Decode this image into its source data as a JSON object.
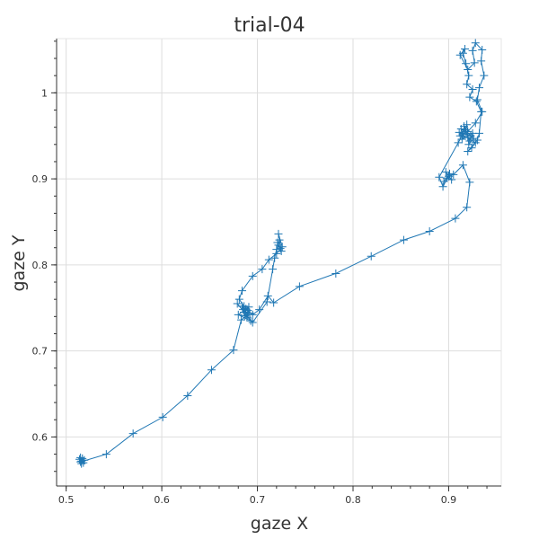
{
  "chart_data": {
    "type": "scatter",
    "title": "trial-04",
    "xlabel": "gaze X",
    "ylabel": "gaze Y",
    "xlim": [
      0.49,
      0.955
    ],
    "ylim": [
      0.543,
      1.063
    ],
    "xticks": [
      0.5,
      0.6,
      0.7,
      0.8,
      0.9
    ],
    "yticks": [
      0.6,
      0.7,
      0.8,
      0.9,
      1.0
    ],
    "xtick_labels": [
      "0.5",
      "0.6",
      "0.7",
      "0.8",
      "0.9"
    ],
    "ytick_labels": [
      "0.6",
      "0.7",
      "0.8",
      "0.9",
      "1"
    ],
    "grid": true,
    "marker": "cross",
    "line_color": "#1f77b4",
    "series": [
      {
        "points": [
          [
            0.516,
            0.572
          ],
          [
            0.515,
            0.576
          ],
          [
            0.518,
            0.57
          ],
          [
            0.514,
            0.574
          ],
          [
            0.519,
            0.573
          ],
          [
            0.516,
            0.569
          ],
          [
            0.517,
            0.575
          ],
          [
            0.515,
            0.571
          ],
          [
            0.542,
            0.58
          ],
          [
            0.57,
            0.604
          ],
          [
            0.601,
            0.623
          ],
          [
            0.627,
            0.648
          ],
          [
            0.652,
            0.678
          ],
          [
            0.675,
            0.701
          ],
          [
            0.683,
            0.736
          ],
          [
            0.69,
            0.742
          ],
          [
            0.685,
            0.748
          ],
          [
            0.691,
            0.751
          ],
          [
            0.686,
            0.745
          ],
          [
            0.689,
            0.739
          ],
          [
            0.684,
            0.752
          ],
          [
            0.692,
            0.744
          ],
          [
            0.687,
            0.741
          ],
          [
            0.688,
            0.749
          ],
          [
            0.68,
            0.742
          ],
          [
            0.693,
            0.735
          ],
          [
            0.679,
            0.755
          ],
          [
            0.695,
            0.733
          ],
          [
            0.71,
            0.757
          ],
          [
            0.716,
            0.795
          ],
          [
            0.718,
            0.808
          ],
          [
            0.72,
            0.818
          ],
          [
            0.722,
            0.823
          ],
          [
            0.724,
            0.819
          ],
          [
            0.721,
            0.826
          ],
          [
            0.725,
            0.816
          ],
          [
            0.723,
            0.829
          ],
          [
            0.722,
            0.836
          ],
          [
            0.726,
            0.821
          ],
          [
            0.72,
            0.813
          ],
          [
            0.712,
            0.806
          ],
          [
            0.705,
            0.795
          ],
          [
            0.695,
            0.787
          ],
          [
            0.684,
            0.77
          ],
          [
            0.681,
            0.76
          ],
          [
            0.686,
            0.752
          ],
          [
            0.69,
            0.747
          ],
          [
            0.695,
            0.742
          ],
          [
            0.702,
            0.748
          ],
          [
            0.711,
            0.764
          ],
          [
            0.717,
            0.756
          ],
          [
            0.744,
            0.775
          ],
          [
            0.782,
            0.79
          ],
          [
            0.819,
            0.81
          ],
          [
            0.853,
            0.829
          ],
          [
            0.88,
            0.839
          ],
          [
            0.907,
            0.854
          ],
          [
            0.919,
            0.867
          ],
          [
            0.922,
            0.896
          ],
          [
            0.915,
            0.916
          ],
          [
            0.905,
            0.905
          ],
          [
            0.9,
            0.903
          ],
          [
            0.897,
            0.908
          ],
          [
            0.903,
            0.899
          ],
          [
            0.898,
            0.901
          ],
          [
            0.895,
            0.897
          ],
          [
            0.901,
            0.906
          ],
          [
            0.894,
            0.891
          ],
          [
            0.89,
            0.902
          ],
          [
            0.91,
            0.942
          ],
          [
            0.915,
            0.952
          ],
          [
            0.913,
            0.958
          ],
          [
            0.918,
            0.955
          ],
          [
            0.912,
            0.95
          ],
          [
            0.92,
            0.948
          ],
          [
            0.916,
            0.961
          ],
          [
            0.922,
            0.944
          ],
          [
            0.925,
            0.953
          ],
          [
            0.914,
            0.946
          ],
          [
            0.919,
            0.963
          ],
          [
            0.921,
            0.94
          ],
          [
            0.926,
            0.947
          ],
          [
            0.917,
            0.957
          ],
          [
            0.923,
            0.95
          ],
          [
            0.911,
            0.954
          ],
          [
            0.928,
            0.942
          ],
          [
            0.924,
            0.936
          ],
          [
            0.92,
            0.932
          ],
          [
            0.93,
            0.945
          ],
          [
            0.932,
            0.953
          ],
          [
            0.934,
            0.978
          ],
          [
            0.929,
            0.99
          ],
          [
            0.922,
            0.995
          ],
          [
            0.925,
            1.004
          ],
          [
            0.919,
            1.01
          ],
          [
            0.921,
            1.02
          ],
          [
            0.918,
            1.034
          ],
          [
            0.915,
            1.046
          ],
          [
            0.917,
            1.051
          ],
          [
            0.912,
            1.044
          ],
          [
            0.92,
            1.027
          ],
          [
            0.927,
            1.035
          ],
          [
            0.925,
            1.049
          ],
          [
            0.928,
            1.058
          ],
          [
            0.935,
            1.05
          ],
          [
            0.934,
            1.037
          ],
          [
            0.937,
            1.02
          ],
          [
            0.932,
            1.006
          ],
          [
            0.93,
            0.992
          ],
          [
            0.935,
            0.978
          ],
          [
            0.928,
            0.965
          ],
          [
            0.92,
            0.955
          ]
        ]
      }
    ]
  }
}
